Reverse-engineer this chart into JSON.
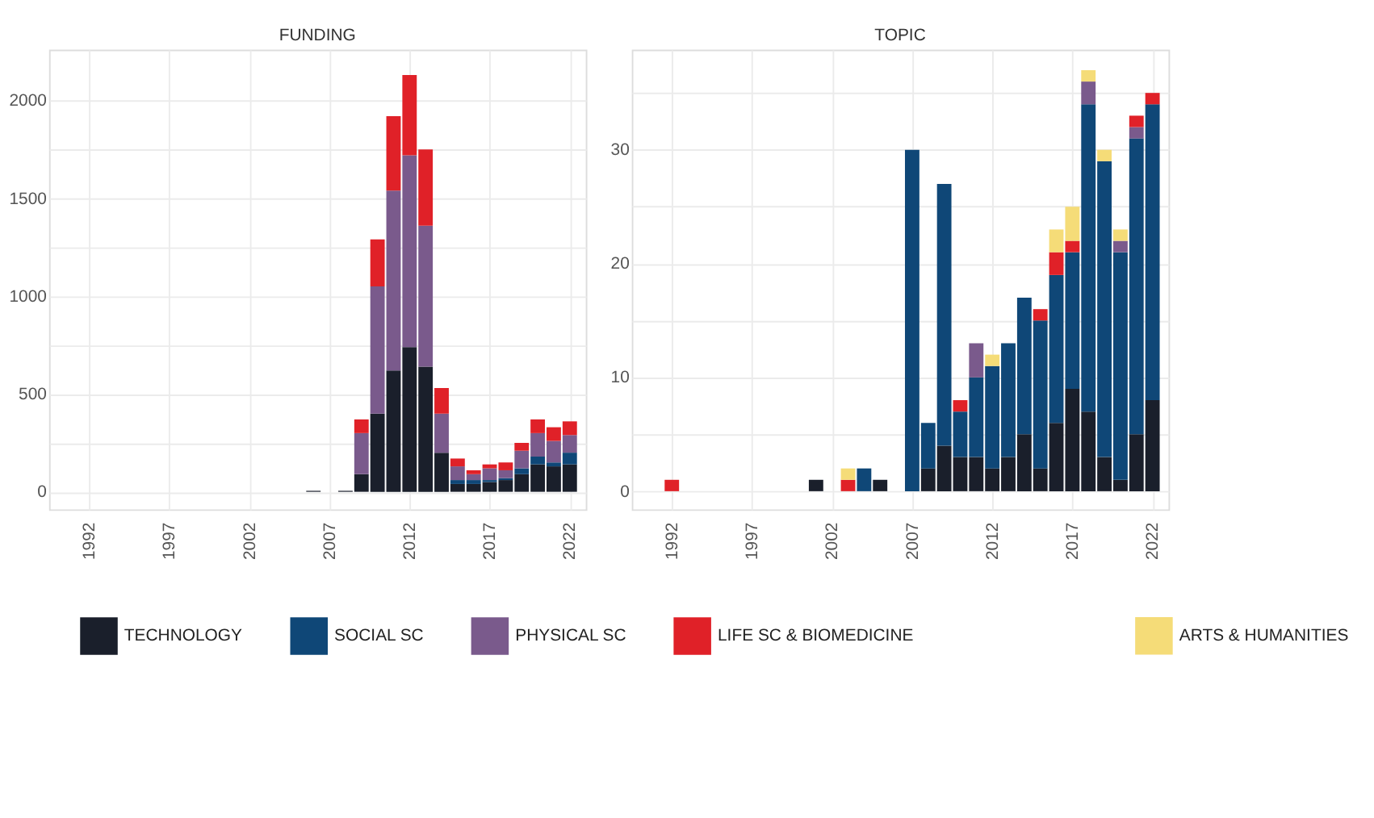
{
  "chart_data": [
    {
      "type": "bar",
      "stacked": true,
      "title": "FUNDING",
      "grid": true,
      "legend": "bottom",
      "x": [
        2006,
        2008,
        2009,
        2010,
        2011,
        2012,
        2013,
        2014,
        2015,
        2016,
        2017,
        2018,
        2019,
        2020,
        2021,
        2022
      ],
      "xlim": [
        1989.5,
        2023
      ],
      "xticks": [
        1992,
        1997,
        2002,
        2007,
        2012,
        2017,
        2022
      ],
      "ylim": [
        -90,
        2260
      ],
      "yticks": [
        0,
        {
          "value": 250,
          "label": null
        },
        500,
        {
          "value": 750,
          "label": null
        },
        1000,
        {
          "value": 1250,
          "label": null
        },
        1500,
        {
          "value": 1750,
          "label": null
        },
        2000
      ],
      "series": [
        {
          "name": "TECHNOLOGY",
          "color": "#1a1f2b",
          "values": [
            5,
            5,
            90,
            400,
            620,
            740,
            640,
            200,
            40,
            40,
            50,
            60,
            90,
            140,
            130,
            140
          ]
        },
        {
          "name": "SOCIAL SC",
          "color": "#0f4777",
          "values": [
            null,
            null,
            null,
            null,
            null,
            null,
            null,
            null,
            20,
            20,
            10,
            10,
            30,
            40,
            20,
            60
          ]
        },
        {
          "name": "PHYSICAL SC",
          "color": "#7a5a8c",
          "values": [
            null,
            null,
            210,
            650,
            920,
            980,
            720,
            200,
            70,
            30,
            60,
            40,
            90,
            120,
            110,
            90
          ]
        },
        {
          "name": "LIFE SC & BIOMEDICINE",
          "color": "#e02128",
          "values": [
            null,
            null,
            70,
            240,
            380,
            410,
            390,
            130,
            40,
            20,
            20,
            40,
            40,
            70,
            70,
            70
          ]
        }
      ]
    },
    {
      "type": "bar",
      "stacked": true,
      "title": "TOPIC",
      "grid": true,
      "legend": "bottom",
      "x": [
        1992,
        2001,
        2003,
        2004,
        2005,
        2007,
        2008,
        2009,
        2010,
        2011,
        2012,
        2013,
        2014,
        2015,
        2016,
        2017,
        2018,
        2019,
        2020,
        2021,
        2022
      ],
      "xlim": [
        1989.5,
        2023
      ],
      "xticks": [
        1992,
        1997,
        2002,
        2007,
        2012,
        2017,
        2022
      ],
      "ylim": [
        -1.6,
        38.8
      ],
      "yticks": [
        0,
        {
          "value": 5,
          "label": null
        },
        10,
        {
          "value": 15,
          "label": null
        },
        20,
        {
          "value": 25,
          "label": null
        },
        30,
        {
          "value": 35,
          "label": null
        }
      ],
      "series": [
        {
          "name": "TECHNOLOGY",
          "color": "#1a1f2b",
          "values": [
            null,
            1,
            null,
            null,
            1,
            null,
            2,
            4,
            3,
            3,
            2,
            3,
            5,
            2,
            6,
            9,
            7,
            3,
            1,
            5,
            8
          ]
        },
        {
          "name": "SOCIAL SC",
          "color": "#0f4777",
          "values": [
            null,
            null,
            null,
            2,
            null,
            30,
            4,
            23,
            4,
            7,
            9,
            10,
            12,
            13,
            13,
            12,
            27,
            26,
            20,
            26,
            26
          ]
        },
        {
          "name": "PHYSICAL SC",
          "color": "#7a5a8c",
          "values": [
            null,
            null,
            null,
            null,
            null,
            null,
            null,
            null,
            null,
            3,
            null,
            null,
            null,
            null,
            null,
            null,
            2,
            null,
            1,
            1,
            null
          ]
        },
        {
          "name": "LIFE SC & BIOMEDICINE",
          "color": "#e02128",
          "values": [
            1,
            null,
            1,
            null,
            null,
            null,
            null,
            null,
            1,
            null,
            null,
            null,
            null,
            1,
            2,
            1,
            null,
            null,
            null,
            1,
            1
          ]
        },
        {
          "name": "ARTS & HUMANITIES",
          "color": "#f5dc78",
          "values": [
            null,
            null,
            1,
            null,
            null,
            null,
            null,
            null,
            null,
            null,
            1,
            null,
            null,
            null,
            2,
            3,
            1,
            1,
            1,
            null,
            null
          ]
        }
      ]
    }
  ]
}
